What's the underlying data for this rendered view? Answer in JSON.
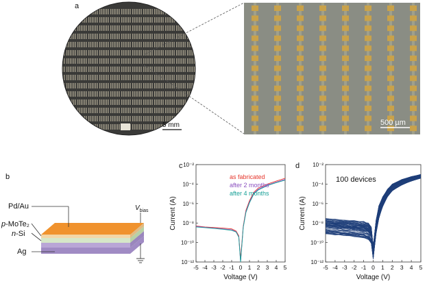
{
  "panels": {
    "a": {
      "letter": "a",
      "wafer_scale": "5 mm",
      "zoom_scale": "500 µm"
    },
    "b": {
      "letter": "b",
      "layers": {
        "top_contact": "Pd/Au",
        "p_prefix": "p",
        "p_material": "-MoTe₂",
        "n_prefix": "n",
        "n_material": "-Si",
        "bottom_contact": "Ag"
      },
      "bias_symbol": "V",
      "bias_subscript": "bias"
    },
    "c": {
      "letter": "c"
    },
    "d": {
      "letter": "d",
      "annotation": "100 devices"
    }
  },
  "colors": {
    "wafer": "#3a3a38",
    "zoom_bg": "#8a8d84",
    "pad": "#c9a24a",
    "orange_layer": "#f0922d",
    "mote2_layer": "#d6e7c8",
    "si_layer": "#b9a6d6",
    "as_fabricated": "#e5352b",
    "after_2_months": "#8a4fbf",
    "after_4_months": "#17a097",
    "device_curves": "#1f3f7a"
  },
  "chart_data": [
    {
      "type": "line",
      "panel": "c",
      "xlabel": "Voltage (V)",
      "ylabel": "Current (A)",
      "yscale": "log",
      "xlim": [
        -5,
        5
      ],
      "ylim": [
        1e-12,
        0.01
      ],
      "xticks": [
        "-5",
        "-4",
        "-3",
        "-2",
        "-1",
        "0",
        "1",
        "2",
        "3",
        "4",
        "5"
      ],
      "yticks": [
        "10⁻¹²",
        "10⁻¹⁰",
        "10⁻⁸",
        "10⁻⁶",
        "10⁻⁴",
        "10⁻²"
      ],
      "series": [
        {
          "name": "as fabricated",
          "x": [
            -5,
            -4,
            -3,
            -2,
            -1,
            -0.5,
            -0.2,
            0,
            0.3,
            0.6,
            1,
            1.5,
            2,
            3,
            4,
            5
          ],
          "y": [
            5e-09,
            4e-09,
            3.5e-09,
            3e-09,
            2.5e-09,
            1.5e-09,
            5e-10,
            2e-12,
            5e-09,
            2e-07,
            2e-06,
            1.5e-05,
            4e-05,
            0.0001,
            0.0002,
            0.0004
          ]
        },
        {
          "name": "after 2 months",
          "x": [
            -5,
            -4,
            -3,
            -2,
            -1,
            -0.5,
            -0.2,
            0,
            0.3,
            0.6,
            1,
            1.5,
            2,
            3,
            4,
            5
          ],
          "y": [
            4.5e-09,
            3.6e-09,
            3e-09,
            2.5e-09,
            2e-09,
            1.3e-09,
            4e-10,
            1e-12,
            4e-09,
            1.5e-07,
            1.5e-06,
            1.2e-05,
            3e-05,
            8e-05,
            0.00016,
            0.0003
          ]
        },
        {
          "name": "after 4 months",
          "x": [
            -5,
            -4,
            -3,
            -2,
            -1,
            -0.5,
            -0.2,
            0,
            0.3,
            0.6,
            1,
            1.5,
            2,
            3,
            4,
            5
          ],
          "y": [
            4e-09,
            3.4e-09,
            2.8e-09,
            2.3e-09,
            1.8e-09,
            1.2e-09,
            3.5e-10,
            1e-12,
            3.5e-09,
            1.2e-07,
            1.2e-06,
            1e-05,
            2.5e-05,
            7e-05,
            0.00014,
            0.00025
          ]
        }
      ]
    },
    {
      "type": "line",
      "panel": "d",
      "xlabel": "Voltage (V)",
      "ylabel": "Current (A)",
      "yscale": "log",
      "xlim": [
        -5,
        5
      ],
      "ylim": [
        1e-12,
        0.01
      ],
      "xticks": [
        "-5",
        "-4",
        "-3",
        "-2",
        "-1",
        "0",
        "1",
        "2",
        "3",
        "4",
        "5"
      ],
      "yticks": [
        "10⁻¹²",
        "10⁻¹⁰",
        "10⁻⁸",
        "10⁻⁶",
        "10⁻⁴",
        "10⁻²"
      ],
      "device_count": 100,
      "envelope": {
        "x": [
          -5,
          -4,
          -3,
          -2,
          -1,
          -0.5,
          -0.2,
          0,
          0.3,
          0.6,
          1,
          1.5,
          2,
          3,
          4,
          5
        ],
        "y_low": [
          8e-10,
          6e-10,
          5e-10,
          4e-10,
          3e-10,
          2e-10,
          8e-11,
          2e-12,
          8e-10,
          3e-08,
          5e-07,
          5e-06,
          2e-05,
          8e-05,
          0.0002,
          0.0004
        ],
        "y_high": [
          3e-08,
          2.5e-08,
          2e-08,
          1.8e-08,
          1.5e-08,
          1e-08,
          4e-09,
          5e-11,
          2e-08,
          6e-07,
          5e-06,
          3e-05,
          0.0001,
          0.0003,
          0.0006,
          0.001
        ]
      }
    }
  ]
}
